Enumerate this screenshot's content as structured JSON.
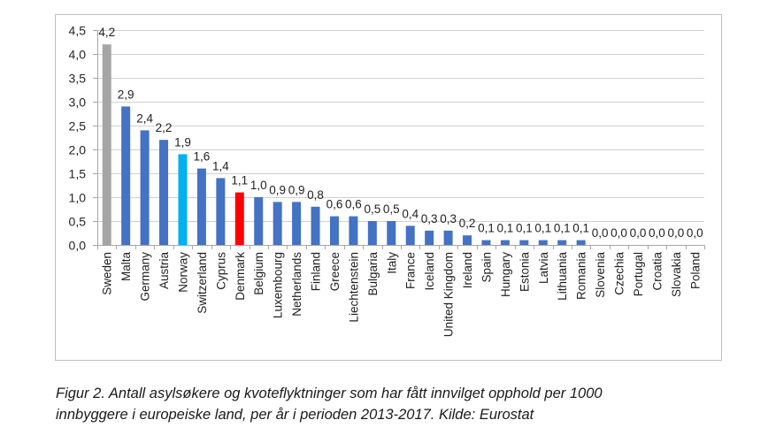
{
  "chart_data": {
    "type": "bar",
    "title": "",
    "xlabel": "",
    "ylabel": "",
    "categories": [
      "Sweden",
      "Malta",
      "Germany",
      "Austria",
      "Norway",
      "Switzerland",
      "Cyprus",
      "Denmark",
      "Belgium",
      "Luxembourg",
      "Netherlands",
      "Finland",
      "Greece",
      "Liechtenstein",
      "Bulgaria",
      "Italy",
      "France",
      "Iceland",
      "United Kingdom",
      "Ireland",
      "Spain",
      "Hungary",
      "Estonia",
      "Latvia",
      "Lithuania",
      "Romania",
      "Slovenia",
      "Czechia",
      "Portugal",
      "Croatia",
      "Slovakia",
      "Poland"
    ],
    "values": [
      4.2,
      2.9,
      2.4,
      2.2,
      1.9,
      1.6,
      1.4,
      1.1,
      1.0,
      0.9,
      0.9,
      0.8,
      0.6,
      0.6,
      0.5,
      0.5,
      0.4,
      0.3,
      0.3,
      0.2,
      0.1,
      0.1,
      0.1,
      0.1,
      0.1,
      0.1,
      0.0,
      0.0,
      0.0,
      0.0,
      0.0,
      0.0
    ],
    "data_labels": [
      "4,2",
      "2,9",
      "2,4",
      "2,2",
      "1,9",
      "1,6",
      "1,4",
      "1,1",
      "1,0",
      "0,9",
      "0,9",
      "0,8",
      "0,6",
      "0,6",
      "0,5",
      "0,5",
      "0,4",
      "0,3",
      "0,3",
      "0,2",
      "0,1",
      "0,1",
      "0,1",
      "0,1",
      "0,1",
      "0,1",
      "0,0",
      "0,0",
      "0,0",
      "0,0",
      "0,0",
      "0,0"
    ],
    "ylim": [
      0,
      4.5
    ],
    "yticks": [
      0,
      0.5,
      1.0,
      1.5,
      2.0,
      2.5,
      3.0,
      3.5,
      4.0,
      4.5
    ],
    "ytick_labels": [
      "0,0",
      "0,5",
      "1,0",
      "1,5",
      "2,0",
      "2,5",
      "3,0",
      "3,5",
      "4,0",
      "4,5"
    ],
    "grid": true,
    "legend": "none",
    "colors": {
      "default": "#4472c4",
      "highlights": {
        "Sweden": "#a5a5a5",
        "Norway": "#00b0f0",
        "Denmark": "#ff0000"
      },
      "gridline": "#d0d0d0",
      "axis": "#a6a6a6"
    }
  },
  "caption": {
    "lines": [
      "Figur 2. Antall asylsøkere og kvoteflyktninger som har fått innvilget opphold per 1000",
      "innbyggere i europeiske land, per år i perioden 2013-2017. Kilde: Eurostat"
    ]
  }
}
